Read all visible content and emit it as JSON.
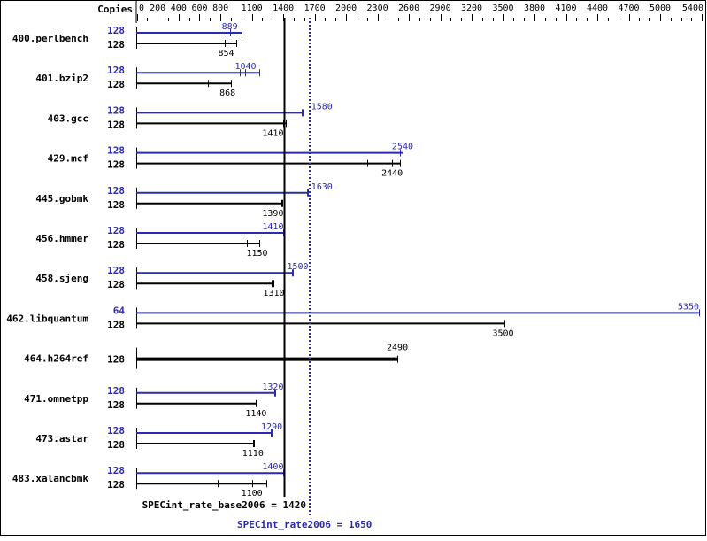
{
  "chart_data": {
    "type": "bar",
    "orientation": "horizontal",
    "axis_header": "Copies",
    "xlim": [
      0,
      5400
    ],
    "x_tick_labels": [
      "0",
      "200",
      "400",
      "600",
      "800",
      "1100",
      "1400",
      "1700",
      "2000",
      "2300",
      "2600",
      "2900",
      "3200",
      "3500",
      "3800",
      "4100",
      "4400",
      "4700",
      "5000",
      "5400"
    ],
    "colors": {
      "peak": "#2b2baf",
      "base": "#000000"
    },
    "reference_lines": [
      {
        "label": "SPECint_rate_base2006 = 1420",
        "value": 1420,
        "color": "#000000",
        "style": "solid"
      },
      {
        "label": "SPECint_rate2006 = 1650",
        "value": 1650,
        "color": "#2b2baf",
        "style": "dotted"
      }
    ],
    "benchmarks": [
      {
        "name": "400.perlbench",
        "peak": {
          "copies": "128",
          "value": 889,
          "label": "889",
          "runs": [
            858,
            892,
            1002
          ]
        },
        "base": {
          "copies": "128",
          "value": 854,
          "label": "854",
          "runs": [
            841,
            858,
            951
          ]
        }
      },
      {
        "name": "401.bzip2",
        "peak": {
          "copies": "128",
          "value": 1040,
          "label": "1040",
          "runs": [
            985,
            1036,
            1171
          ]
        },
        "base": {
          "copies": "128",
          "value": 868,
          "label": "868",
          "runs": [
            680,
            858,
            900
          ]
        }
      },
      {
        "name": "403.gcc",
        "peak": {
          "copies": "128",
          "value": 1580,
          "label": "1580",
          "runs": [
            1577,
            1585
          ]
        },
        "base": {
          "copies": "128",
          "value": 1410,
          "label": "1410",
          "runs": [
            1399,
            1424
          ]
        }
      },
      {
        "name": "429.mcf",
        "peak": {
          "copies": "128",
          "value": 2540,
          "label": "2540",
          "runs": [
            2518,
            2541
          ]
        },
        "base": {
          "copies": "128",
          "value": 2440,
          "label": "2440",
          "runs": [
            2202,
            2439,
            2515
          ]
        }
      },
      {
        "name": "445.gobmk",
        "peak": {
          "copies": "128",
          "value": 1630,
          "label": "1630",
          "runs": [
            1627,
            1636
          ]
        },
        "base": {
          "copies": "128",
          "value": 1390,
          "label": "1390",
          "runs": [
            1382,
            1390
          ]
        }
      },
      {
        "name": "456.hmmer",
        "peak": {
          "copies": "128",
          "value": 1410,
          "label": "1410",
          "runs": [
            1399,
            1407
          ]
        },
        "base": {
          "copies": "128",
          "value": 1150,
          "label": "1150",
          "runs": [
            1053,
            1145,
            1171
          ]
        }
      },
      {
        "name": "458.sjeng",
        "peak": {
          "copies": "128",
          "value": 1500,
          "label": "1500",
          "runs": [
            1484,
            1492
          ]
        },
        "base": {
          "copies": "128",
          "value": 1310,
          "label": "1310",
          "runs": [
            1289,
            1306
          ]
        }
      },
      {
        "name": "462.libquantum",
        "peak": {
          "copies": "64",
          "value": 5350,
          "label": "5350",
          "runs": [
            5370
          ]
        },
        "base": {
          "copies": "128",
          "value": 3500,
          "label": "3500",
          "runs": [
            3512
          ]
        }
      },
      {
        "name": "464.h264ref",
        "combined": true,
        "base": {
          "copies": "128",
          "value": 2490,
          "label": "2490",
          "runs": [
            2473,
            2490
          ]
        }
      },
      {
        "name": "471.omnetpp",
        "peak": {
          "copies": "128",
          "value": 1320,
          "label": "1320",
          "runs": [
            1314,
            1323
          ]
        },
        "base": {
          "copies": "128",
          "value": 1140,
          "label": "1140",
          "runs": [
            1137,
            1145
          ]
        }
      },
      {
        "name": "473.astar",
        "peak": {
          "copies": "128",
          "value": 1290,
          "label": "1290",
          "runs": [
            1281,
            1289
          ]
        },
        "base": {
          "copies": "128",
          "value": 1110,
          "label": "1110",
          "runs": [
            1112,
            1120
          ]
        }
      },
      {
        "name": "483.xalancbmk",
        "peak": {
          "copies": "128",
          "value": 1400,
          "label": "1400",
          "runs": [
            1399,
            1407
          ]
        },
        "base": {
          "copies": "128",
          "value": 1100,
          "label": "1100",
          "runs": [
            775,
            1103,
            1238
          ]
        }
      }
    ]
  }
}
